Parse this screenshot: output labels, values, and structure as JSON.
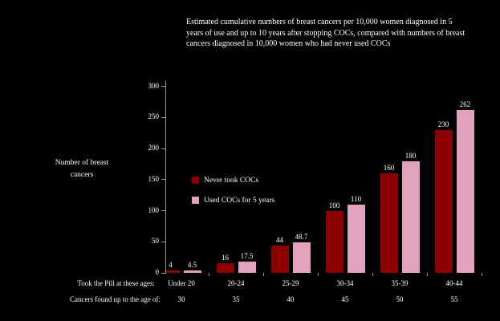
{
  "title": "Estimated cumulative numbers of breast cancers per 10,000 women diagnosed in 5 years of use and up to 10 years after stopping COCs, compared with numbers of breast cancers diagnosed in 10,000 women who had never used COCs",
  "y_axis": {
    "label": "Number of breast cancers",
    "label_lines": [
      "Number of breast",
      "cancers"
    ],
    "ticks": [
      0,
      50,
      100,
      150,
      200,
      250,
      300
    ]
  },
  "x_axis": {
    "row1_caption": "Took the Pill at these ages:",
    "row2_caption": "Cancers found up to the age of:",
    "row1_values": [
      "Under 20",
      "20-24",
      "25-29",
      "30-34",
      "35-39",
      "40-44"
    ],
    "row2_values": [
      "30",
      "35",
      "40",
      "45",
      "50",
      "55"
    ]
  },
  "legend": [
    {
      "label": "Never took COCs",
      "color": "#8b0000"
    },
    {
      "label": "Used COCs for 5 years",
      "color": "#e2a1bc"
    }
  ],
  "chart_data": {
    "type": "bar",
    "title": "Estimated cumulative numbers of breast cancers per 10,000 women diagnosed in 5 years of use and up to 10 years after stopping COCs, compared with numbers of breast cancers diagnosed in 10,000 women who had never used COCs",
    "categories": [
      "Under 20",
      "20-24",
      "25-29",
      "30-34",
      "35-39",
      "40-44"
    ],
    "secondary_categories": [
      "30",
      "35",
      "40",
      "45",
      "50",
      "55"
    ],
    "series": [
      {
        "name": "Never took COCs",
        "color": "#8b0000",
        "values": [
          4,
          16,
          44,
          100,
          160,
          230
        ]
      },
      {
        "name": "Used COCs for 5 years",
        "color": "#e2a1bc",
        "values": [
          4.5,
          17.5,
          48.7,
          110,
          180,
          262
        ]
      }
    ],
    "ylabel": "Number of breast cancers",
    "xlabel_row1": "Took the Pill at these ages:",
    "xlabel_row2": "Cancers found up to the age of:",
    "ylim": [
      0,
      300
    ],
    "yticks": [
      0,
      50,
      100,
      150,
      200,
      250,
      300
    ],
    "grid": false,
    "legend_position": "center-left inside plot",
    "value_labels": true
  },
  "colors": {
    "background": "#000000",
    "text": "#ffffff",
    "axis": "#9a9a9a",
    "series_never": "#8b0000",
    "series_used": "#e2a1bc"
  }
}
